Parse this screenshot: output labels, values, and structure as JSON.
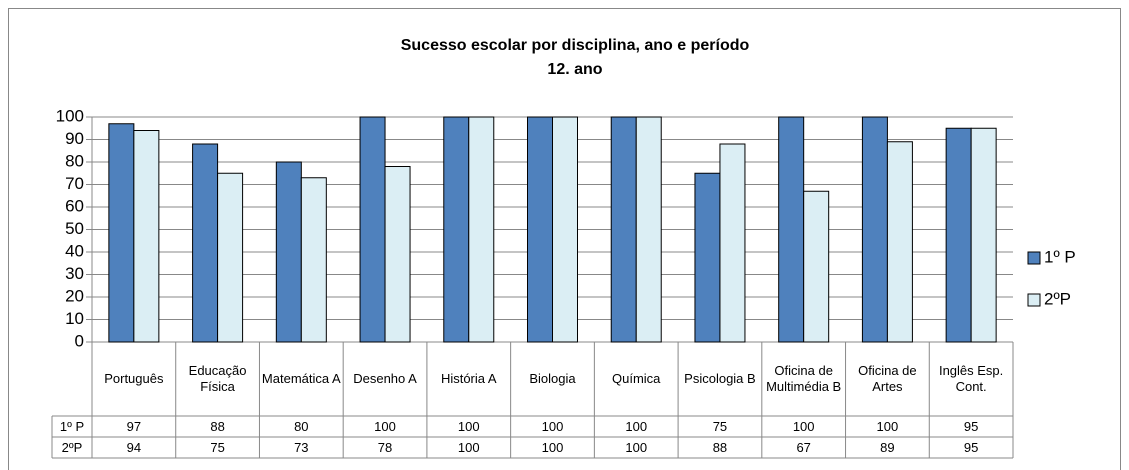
{
  "chart_data": {
    "type": "bar",
    "title": "Sucesso escolar por disciplina, ano e período",
    "subtitle": "12. ano",
    "categories": [
      "Português",
      "Educação Física",
      "Matemática A",
      "Desenho A",
      "História A",
      "Biologia",
      "Química",
      "Psicologia B",
      "Oficina de Multimédia B",
      "Oficina de Artes",
      "Inglês Esp. Cont."
    ],
    "series": [
      {
        "name": "1º P",
        "color": "#4f81bd",
        "values": [
          97,
          88,
          80,
          100,
          100,
          100,
          100,
          75,
          100,
          100,
          95
        ]
      },
      {
        "name": "2ºP",
        "color": "#dbeef4",
        "values": [
          94,
          75,
          73,
          78,
          100,
          100,
          100,
          88,
          67,
          89,
          95
        ]
      }
    ],
    "ylim": [
      0,
      100
    ],
    "yticks": [
      0,
      10,
      20,
      30,
      40,
      50,
      60,
      70,
      80,
      90,
      100
    ],
    "grid": true,
    "legend": "right",
    "data_table": true
  }
}
